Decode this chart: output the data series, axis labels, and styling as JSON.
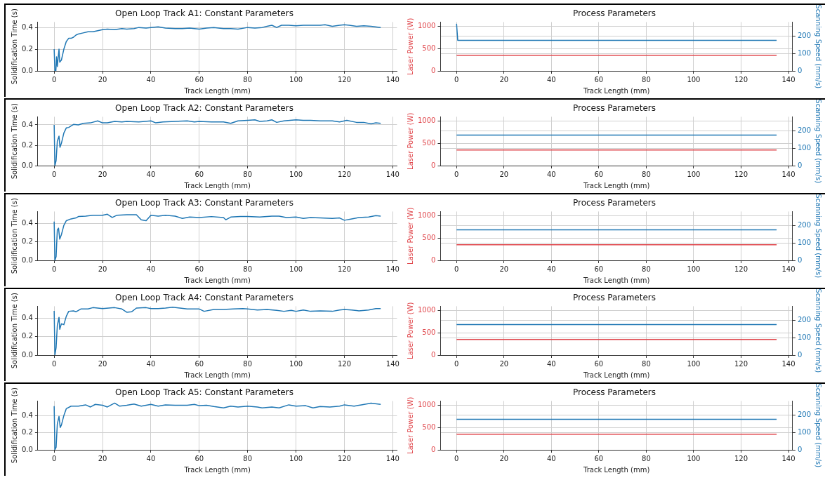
{
  "chart_data": [
    {
      "type": "line",
      "title": "Open Loop Track A1: Constant Parameters",
      "xlabel": "Track Length (mm)",
      "ylabel": "Solidification Time (s)",
      "xlim": [
        -6.75,
        141.75
      ],
      "xticks": [
        0,
        20,
        40,
        60,
        80,
        100,
        120,
        140
      ],
      "ylim": [
        0,
        0.45
      ],
      "yticks": [
        {
          "value": 0,
          "label": "0.0"
        },
        {
          "value": 0.2,
          "label": "0.2"
        },
        {
          "value": 0.4,
          "label": "0.4"
        }
      ],
      "grid": true,
      "x": [
        0,
        0.3,
        0.7,
        1,
        1.3,
        2,
        2.3,
        3,
        4,
        5,
        6,
        7,
        8,
        9,
        10,
        12,
        14,
        16,
        18,
        20,
        22,
        25,
        28,
        30,
        33,
        35,
        38,
        40,
        43,
        46,
        50,
        53,
        56,
        60,
        63,
        66,
        70,
        73,
        76,
        80,
        83,
        86,
        88,
        90,
        92,
        94,
        97,
        100,
        103,
        106,
        110,
        112,
        115,
        118,
        120,
        122,
        125,
        128,
        131,
        135
      ],
      "series": [
        {
          "color": "#1f77b4",
          "values": [
            0.2,
            0,
            0,
            0.13,
            0.04,
            0.2,
            0.08,
            0.1,
            0.2,
            0.27,
            0.3,
            0.3,
            0.31,
            0.33,
            0.34,
            0.35,
            0.36,
            0.36,
            0.37,
            0.38,
            0.385,
            0.38,
            0.39,
            0.385,
            0.39,
            0.4,
            0.395,
            0.4,
            0.405,
            0.395,
            0.39,
            0.39,
            0.395,
            0.385,
            0.395,
            0.4,
            0.39,
            0.39,
            0.385,
            0.4,
            0.395,
            0.4,
            0.41,
            0.42,
            0.4,
            0.42,
            0.42,
            0.415,
            0.42,
            0.42,
            0.42,
            0.425,
            0.41,
            0.42,
            0.425,
            0.42,
            0.41,
            0.415,
            0.41,
            0.4
          ]
        }
      ]
    },
    {
      "type": "line",
      "title": "Process Parameters",
      "xlabel": "Track Length (mm)",
      "ylabel": "Laser Power (W)",
      "y2label": "Scanning Speed (mm/s)",
      "xlim": [
        -6.75,
        141.75
      ],
      "xticks": [
        0,
        20,
        40,
        60,
        80,
        100,
        120,
        140
      ],
      "ylim": [
        0,
        1100
      ],
      "yticks": [
        0,
        500,
        1000
      ],
      "y2lim": [
        0,
        280
      ],
      "y2ticks": [
        0,
        100,
        200
      ],
      "grid": true,
      "series": [
        {
          "color": "#e0474c",
          "x": [
            0,
            135
          ],
          "values": [
            350,
            350
          ]
        },
        {
          "color": "#1f77b4",
          "axis": "y2",
          "x": [
            0,
            0.5,
            135
          ],
          "values": [
            270,
            175,
            175
          ]
        }
      ]
    },
    {
      "type": "line",
      "title": "Open Loop Track A2: Constant Parameters",
      "xlabel": "Track Length (mm)",
      "ylabel": "Solidification Time (s)",
      "xlim": [
        -6.75,
        141.75
      ],
      "xticks": [
        0,
        20,
        40,
        60,
        80,
        100,
        120,
        140
      ],
      "ylim": [
        0,
        0.48
      ],
      "yticks": [
        {
          "value": 0,
          "label": "0.0"
        },
        {
          "value": 0.2,
          "label": "0.2"
        },
        {
          "value": 0.4,
          "label": "0.4"
        }
      ],
      "grid": true,
      "x": [
        0,
        0.3,
        0.8,
        1.3,
        2,
        2.4,
        3,
        4,
        5,
        6,
        7,
        8,
        10,
        12,
        15,
        18,
        20,
        22,
        25,
        28,
        30,
        35,
        40,
        42,
        45,
        50,
        55,
        58,
        60,
        65,
        70,
        73,
        76,
        80,
        83,
        85,
        88,
        90,
        92,
        95,
        100,
        103,
        106,
        110,
        115,
        118,
        121,
        125,
        128,
        131,
        133,
        135
      ],
      "series": [
        {
          "color": "#1f77b4",
          "values": [
            0.4,
            0,
            0.05,
            0.24,
            0.29,
            0.18,
            0.22,
            0.32,
            0.37,
            0.375,
            0.39,
            0.405,
            0.4,
            0.415,
            0.42,
            0.44,
            0.42,
            0.42,
            0.435,
            0.43,
            0.435,
            0.43,
            0.44,
            0.42,
            0.43,
            0.435,
            0.44,
            0.43,
            0.435,
            0.43,
            0.43,
            0.415,
            0.44,
            0.445,
            0.45,
            0.435,
            0.44,
            0.45,
            0.425,
            0.44,
            0.45,
            0.445,
            0.445,
            0.44,
            0.44,
            0.43,
            0.445,
            0.425,
            0.425,
            0.41,
            0.42,
            0.415
          ]
        }
      ]
    },
    {
      "type": "line",
      "title": "Process Parameters",
      "xlabel": "Track Length (mm)",
      "ylabel": "Laser Power (W)",
      "y2label": "Scanning Speed (mm/s)",
      "xlim": [
        -6.75,
        141.75
      ],
      "xticks": [
        0,
        20,
        40,
        60,
        80,
        100,
        120,
        140
      ],
      "ylim": [
        0,
        1100
      ],
      "yticks": [
        0,
        500,
        1000
      ],
      "y2lim": [
        0,
        280
      ],
      "y2ticks": [
        0,
        100,
        200
      ],
      "grid": true,
      "series": [
        {
          "color": "#e0474c",
          "x": [
            0,
            135
          ],
          "values": [
            350,
            350
          ]
        },
        {
          "color": "#1f77b4",
          "axis": "y2",
          "x": [
            0,
            135
          ],
          "values": [
            175,
            175
          ]
        }
      ]
    },
    {
      "type": "line",
      "title": "Open Loop Track A3: Constant Parameters",
      "xlabel": "Track Length (mm)",
      "ylabel": "Solidification Time (s)",
      "xlim": [
        -6.75,
        141.75
      ],
      "xticks": [
        0,
        20,
        40,
        60,
        80,
        100,
        120,
        140
      ],
      "ylim": [
        0,
        0.53
      ],
      "yticks": [
        {
          "value": 0,
          "label": "0.0"
        },
        {
          "value": 0.2,
          "label": "0.2"
        },
        {
          "value": 0.4,
          "label": "0.4"
        }
      ],
      "grid": true,
      "x": [
        0,
        0.3,
        0.8,
        1.3,
        1.8,
        2.3,
        3,
        4,
        5,
        7,
        9,
        10,
        13,
        16,
        20,
        22,
        24,
        26,
        30,
        34,
        36,
        38,
        40,
        43,
        46,
        50,
        53,
        56,
        60,
        65,
        70,
        71,
        73,
        77,
        80,
        85,
        90,
        93,
        96,
        100,
        103,
        106,
        110,
        115,
        118,
        120,
        123,
        126,
        130,
        133,
        135
      ],
      "series": [
        {
          "color": "#1f77b4",
          "values": [
            0.42,
            0,
            0.04,
            0.33,
            0.35,
            0.23,
            0.28,
            0.38,
            0.43,
            0.45,
            0.46,
            0.475,
            0.48,
            0.49,
            0.49,
            0.5,
            0.465,
            0.49,
            0.495,
            0.495,
            0.44,
            0.43,
            0.49,
            0.48,
            0.49,
            0.48,
            0.455,
            0.47,
            0.465,
            0.475,
            0.465,
            0.44,
            0.47,
            0.475,
            0.475,
            0.47,
            0.48,
            0.48,
            0.465,
            0.47,
            0.455,
            0.465,
            0.46,
            0.455,
            0.46,
            0.435,
            0.45,
            0.465,
            0.47,
            0.485,
            0.48
          ]
        }
      ]
    },
    {
      "type": "line",
      "title": "Process Parameters",
      "xlabel": "Track Length (mm)",
      "ylabel": "Laser Power (W)",
      "y2label": "Scanning Speed (mm/s)",
      "xlim": [
        -6.75,
        141.75
      ],
      "xticks": [
        0,
        20,
        40,
        60,
        80,
        100,
        120,
        140
      ],
      "ylim": [
        0,
        1100
      ],
      "yticks": [
        0,
        500,
        1000
      ],
      "y2lim": [
        0,
        280
      ],
      "y2ticks": [
        0,
        100,
        200
      ],
      "grid": true,
      "series": [
        {
          "color": "#e0474c",
          "x": [
            0,
            135
          ],
          "values": [
            350,
            350
          ]
        },
        {
          "color": "#1f77b4",
          "axis": "y2",
          "x": [
            0,
            135
          ],
          "values": [
            175,
            175
          ]
        }
      ]
    },
    {
      "type": "line",
      "title": "Open Loop Track A4: Constant Parameters",
      "xlabel": "Track Length (mm)",
      "ylabel": "Solidification Time (s)",
      "xlim": [
        -6.75,
        141.75
      ],
      "xticks": [
        0,
        20,
        40,
        60,
        80,
        100,
        120,
        140
      ],
      "ylim": [
        0,
        0.53
      ],
      "yticks": [
        {
          "value": 0,
          "label": "0.0"
        },
        {
          "value": 0.2,
          "label": "0.2"
        },
        {
          "value": 0.4,
          "label": "0.4"
        }
      ],
      "grid": true,
      "x": [
        0,
        0.3,
        0.8,
        1.3,
        2,
        2.3,
        3,
        4,
        5,
        6,
        8,
        9,
        11,
        14,
        16,
        20,
        25,
        28,
        30,
        32,
        34,
        38,
        40,
        43,
        46,
        49,
        52,
        55,
        60,
        62,
        66,
        70,
        74,
        78,
        80,
        84,
        88,
        92,
        95,
        98,
        100,
        103,
        106,
        110,
        115,
        118,
        120,
        123,
        126,
        130,
        133,
        135
      ],
      "series": [
        {
          "color": "#1f77b4",
          "values": [
            0.48,
            0,
            0.08,
            0.32,
            0.41,
            0.28,
            0.34,
            0.33,
            0.42,
            0.475,
            0.48,
            0.47,
            0.5,
            0.5,
            0.515,
            0.505,
            0.515,
            0.5,
            0.465,
            0.47,
            0.51,
            0.515,
            0.505,
            0.505,
            0.51,
            0.52,
            0.51,
            0.5,
            0.5,
            0.475,
            0.495,
            0.495,
            0.5,
            0.505,
            0.5,
            0.49,
            0.495,
            0.485,
            0.475,
            0.485,
            0.475,
            0.49,
            0.475,
            0.48,
            0.475,
            0.49,
            0.495,
            0.49,
            0.48,
            0.49,
            0.505,
            0.505
          ]
        }
      ]
    },
    {
      "type": "line",
      "title": "Process Parameters",
      "xlabel": "Track Length (mm)",
      "ylabel": "Laser Power (W)",
      "y2label": "Scanning Speed (mm/s)",
      "xlim": [
        -6.75,
        141.75
      ],
      "xticks": [
        0,
        20,
        40,
        60,
        80,
        100,
        120,
        140
      ],
      "ylim": [
        0,
        1100
      ],
      "yticks": [
        0,
        500,
        1000
      ],
      "y2lim": [
        0,
        280
      ],
      "y2ticks": [
        0,
        100,
        200
      ],
      "grid": true,
      "series": [
        {
          "color": "#e0474c",
          "x": [
            0,
            135
          ],
          "values": [
            350,
            350
          ]
        },
        {
          "color": "#1f77b4",
          "axis": "y2",
          "x": [
            0,
            135
          ],
          "values": [
            175,
            175
          ]
        }
      ]
    },
    {
      "type": "line",
      "title": "Open Loop Track A5: Constant Parameters",
      "xlabel": "Track Length (mm)",
      "ylabel": "Solidification Time (s)",
      "xlim": [
        -6.75,
        141.75
      ],
      "xticks": [
        0,
        20,
        40,
        60,
        80,
        100,
        120,
        140
      ],
      "ylim": [
        0,
        0.57
      ],
      "yticks": [
        {
          "value": 0,
          "label": "0.0"
        },
        {
          "value": 0.2,
          "label": "0.2"
        },
        {
          "value": 0.4,
          "label": "0.4"
        }
      ],
      "grid": true,
      "x": [
        0,
        0.3,
        0.8,
        1.3,
        2,
        2.5,
        3,
        4,
        5,
        7,
        10,
        13,
        15,
        17,
        20,
        22,
        25,
        27,
        30,
        33,
        36,
        40,
        43,
        46,
        50,
        55,
        58,
        60,
        63,
        66,
        70,
        73,
        76,
        80,
        84,
        86,
        90,
        93,
        97,
        100,
        104,
        107,
        110,
        114,
        118,
        120,
        124,
        127,
        131,
        135
      ],
      "series": [
        {
          "color": "#1f77b4",
          "values": [
            0.51,
            0,
            0.03,
            0.3,
            0.39,
            0.26,
            0.29,
            0.4,
            0.48,
            0.51,
            0.51,
            0.525,
            0.5,
            0.53,
            0.52,
            0.5,
            0.545,
            0.51,
            0.52,
            0.535,
            0.51,
            0.53,
            0.51,
            0.525,
            0.52,
            0.52,
            0.53,
            0.515,
            0.52,
            0.505,
            0.49,
            0.51,
            0.5,
            0.51,
            0.5,
            0.49,
            0.5,
            0.49,
            0.525,
            0.51,
            0.515,
            0.49,
            0.505,
            0.5,
            0.51,
            0.525,
            0.51,
            0.525,
            0.545,
            0.53
          ]
        }
      ]
    },
    {
      "type": "line",
      "title": "Process Parameters",
      "xlabel": "Track Length (mm)",
      "ylabel": "Laser Power (W)",
      "y2label": "Scanning Speed (mm/s)",
      "xlim": [
        -6.75,
        141.75
      ],
      "xticks": [
        0,
        20,
        40,
        60,
        80,
        100,
        120,
        140
      ],
      "ylim": [
        0,
        1100
      ],
      "yticks": [
        0,
        500,
        1000
      ],
      "y2lim": [
        0,
        280
      ],
      "y2ticks": [
        0,
        100,
        200
      ],
      "grid": true,
      "series": [
        {
          "color": "#e0474c",
          "x": [
            0,
            135
          ],
          "values": [
            350,
            350
          ]
        },
        {
          "color": "#1f77b4",
          "axis": "y2",
          "x": [
            0,
            135
          ],
          "values": [
            175,
            175
          ]
        }
      ]
    }
  ]
}
